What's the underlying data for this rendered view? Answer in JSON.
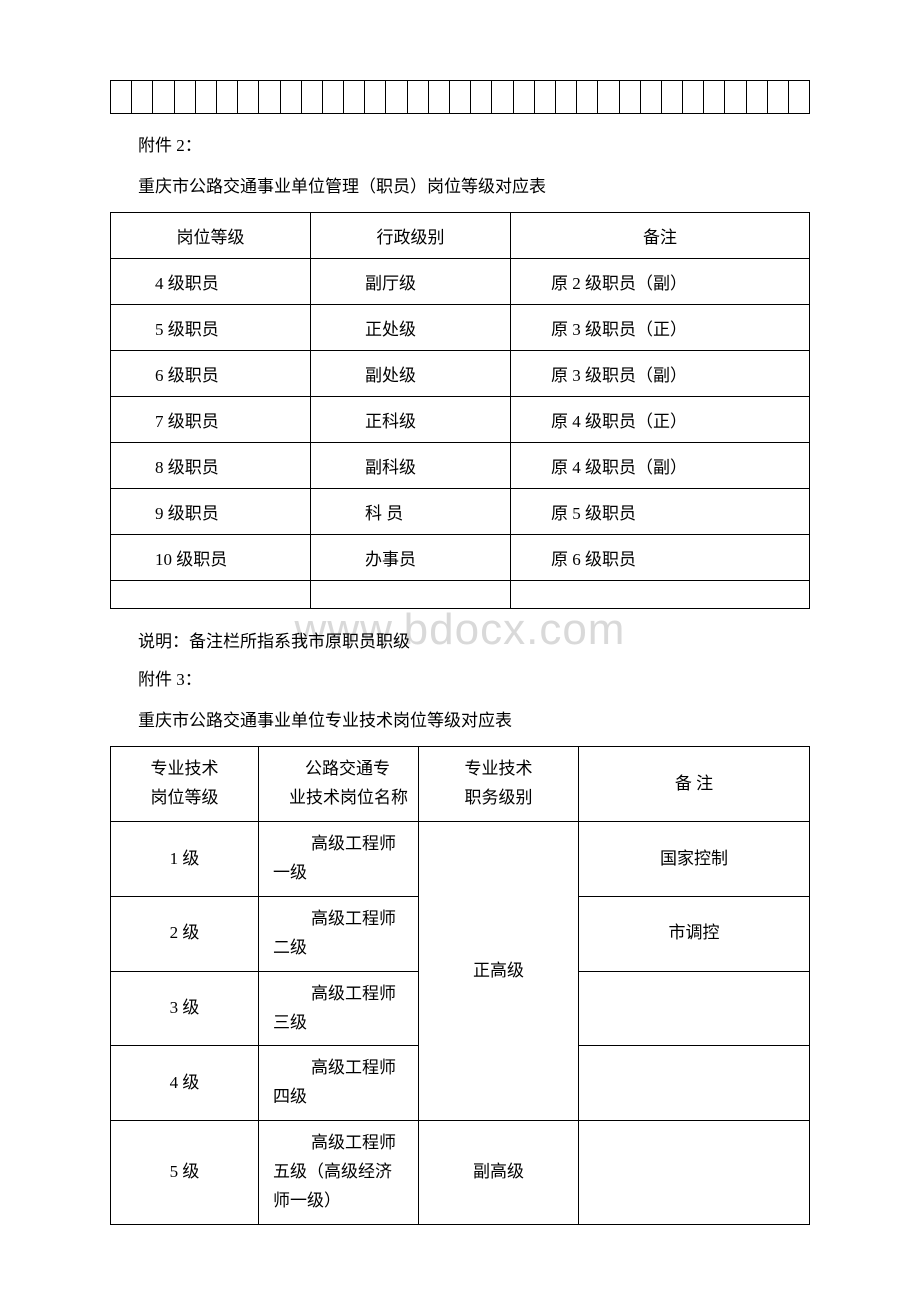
{
  "watermark": "www.bdocx.com",
  "topGrid": {
    "cellCount": 33
  },
  "attachment2": {
    "label": "附件 2：",
    "title": "重庆市公路交通事业单位管理（职员）岗位等级对应表",
    "headers": [
      "岗位等级",
      "行政级别",
      "备注"
    ],
    "rows": [
      [
        "4 级职员",
        "副厅级",
        "原 2 级职员（副）"
      ],
      [
        "5 级职员",
        "正处级",
        "原 3 级职员（正）"
      ],
      [
        "6 级职员",
        "副处级",
        "原 3 级职员（副）"
      ],
      [
        "7 级职员",
        "正科级",
        "原 4 级职员（正）"
      ],
      [
        "8 级职员",
        "副科级",
        "原 4 级职员（副）"
      ],
      [
        "9 级职员",
        "科 员",
        "原 5 级职员"
      ],
      [
        "10 级职员",
        "办事员",
        "原 6 级职员"
      ]
    ],
    "note": "说明：备注栏所指系我市原职员职级"
  },
  "attachment3": {
    "label": "附件 3：",
    "title": "重庆市公路交通事业单位专业技术岗位等级对应表",
    "headers": {
      "col1Line1": "专业技术",
      "col1Line2": "岗位等级",
      "col2Line1": "公路交通专",
      "col2Line2": "业技术岗位名称",
      "col3Line1": "专业技术",
      "col3Line2": "职务级别",
      "col4": "备 注"
    },
    "rows": [
      {
        "level": "1 级",
        "nameLine1": "高级工程师",
        "nameLine2": "一级",
        "remark": "国家控制"
      },
      {
        "level": "2 级",
        "nameLine1": "高级工程师",
        "nameLine2": "二级",
        "remark": "市调控"
      },
      {
        "level": "3 级",
        "nameLine1": "高级工程师",
        "nameLine2": "三级",
        "remark": ""
      },
      {
        "level": "4 级",
        "nameLine1": "高级工程师",
        "nameLine2": "四级",
        "remark": ""
      },
      {
        "level": "5 级",
        "nameLine1": "高级工程师",
        "nameLine2": "五级（高级经济",
        "nameLine3": "师一级）",
        "remark": ""
      }
    ],
    "dutyGroup1": "正高级",
    "dutyGroup2": "副高级"
  }
}
